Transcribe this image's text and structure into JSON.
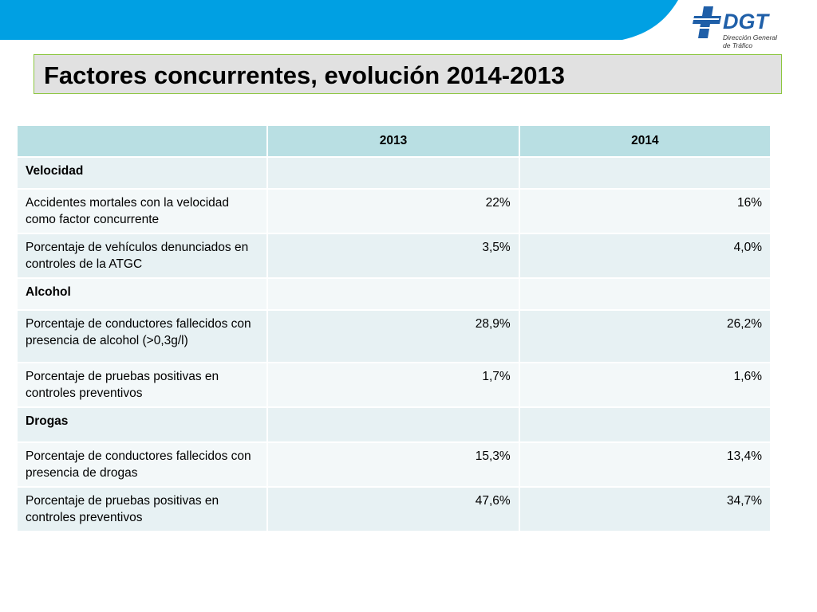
{
  "header": {
    "logo_text": "DGT",
    "logo_sub_1": "Dirección General",
    "logo_sub_2": "de Tráfico",
    "band_color": "#00a0e3"
  },
  "title": "Factores concurrentes, evolución 2014-2013",
  "table": {
    "headers": [
      "",
      "2013",
      "2014"
    ],
    "rows": [
      {
        "label": "Velocidad",
        "section": true,
        "v2013": "",
        "v2014": ""
      },
      {
        "label": "Accidentes mortales con la velocidad como factor concurrente",
        "section": false,
        "v2013": "22%",
        "v2014": "16%"
      },
      {
        "label": "Porcentaje de vehículos denunciados en controles de la ATGC",
        "section": false,
        "v2013": "3,5%",
        "v2014": "4,0%"
      },
      {
        "label": "Alcohol",
        "section": true,
        "v2013": "",
        "v2014": ""
      },
      {
        "label": "Porcentaje de conductores fallecidos con presencia de alcohol (>0,3g/l)",
        "section": false,
        "v2013": "28,9%",
        "v2014": "26,2%"
      },
      {
        "label": "Porcentaje de pruebas positivas en controles preventivos",
        "section": false,
        "v2013": "1,7%",
        "v2014": "1,6%"
      },
      {
        "label": "Drogas",
        "section": true,
        "v2013": "",
        "v2014": ""
      },
      {
        "label": "Porcentaje de conductores fallecidos con presencia de drogas",
        "section": false,
        "v2013": "15,3%",
        "v2014": "13,4%"
      },
      {
        "label": "Porcentaje de pruebas positivas en controles preventivos",
        "section": false,
        "v2013": "47,6%",
        "v2014": "34,7%"
      }
    ]
  }
}
